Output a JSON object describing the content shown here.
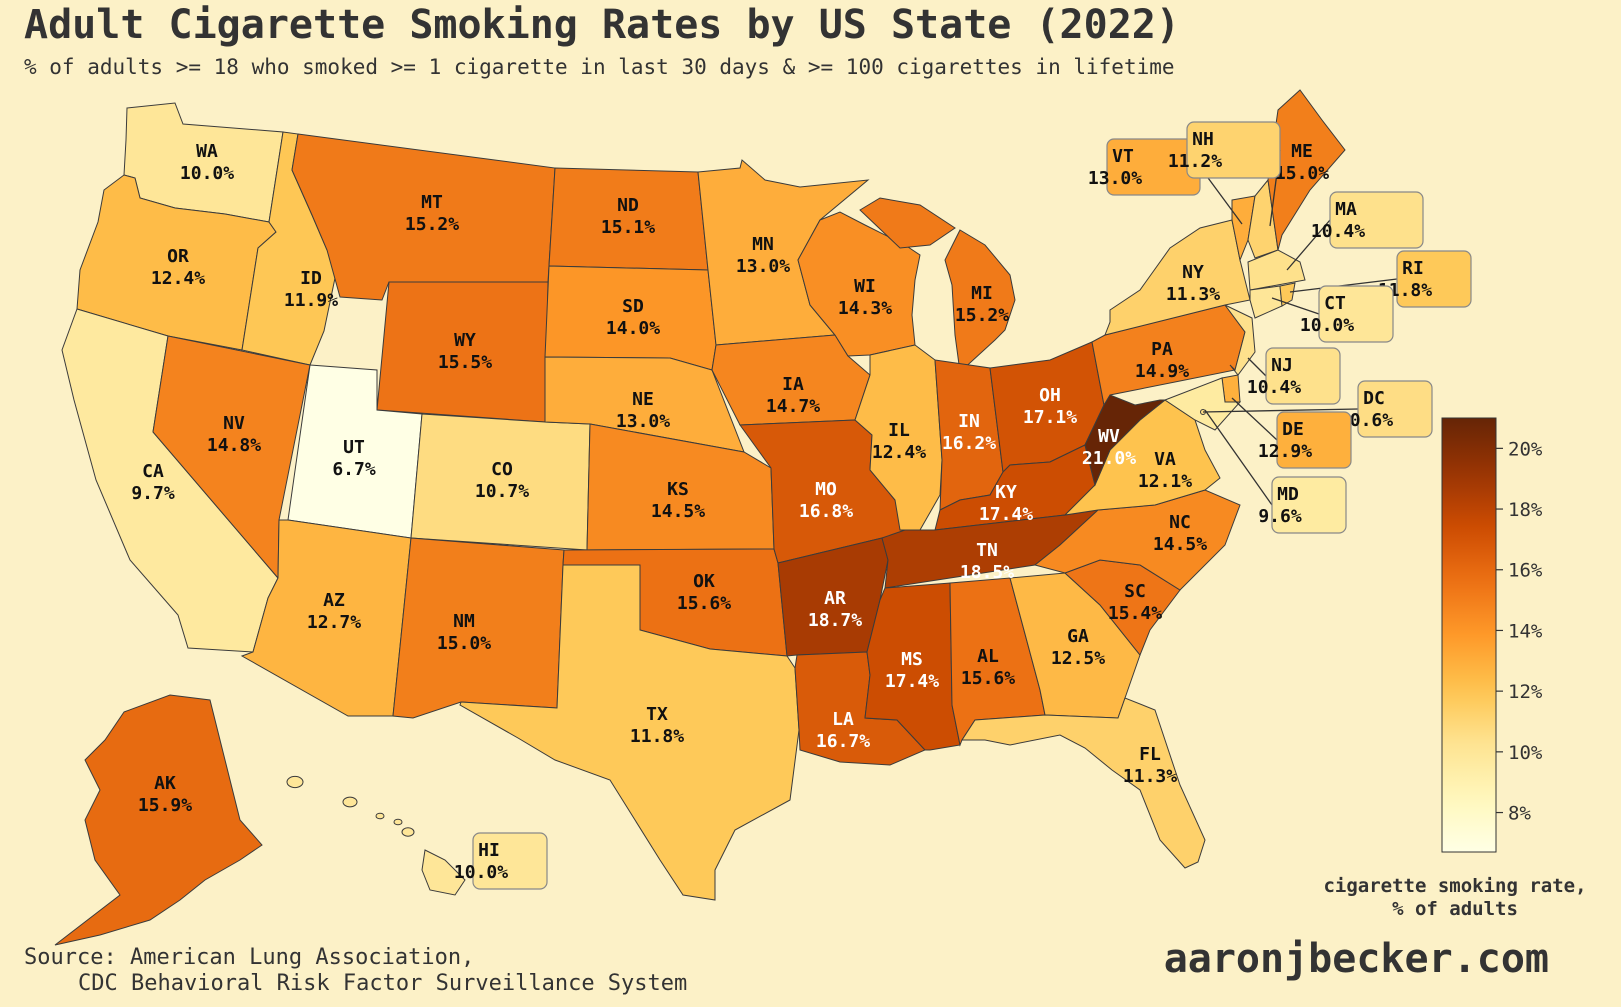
{
  "header": {
    "title": "Adult Cigarette Smoking Rates by US State (2022)",
    "subtitle": "% of adults >= 18 who smoked >= 1 cigarette in last 30 days & >= 100 cigarettes in lifetime"
  },
  "footer": {
    "source_line1": "Source: American Lung Association,",
    "source_line2": "CDC Behavioral Risk Factor Surveillance System",
    "brand": "aaronjbecker.com"
  },
  "legend": {
    "label_line1": "cigarette smoking rate,",
    "label_line2": "% of adults",
    "min": 6.7,
    "max": 21.0,
    "ticks": [
      8,
      10,
      12,
      14,
      16,
      18,
      20
    ],
    "tick_labels": [
      "8%",
      "10%",
      "12%",
      "14%",
      "16%",
      "18%",
      "20%"
    ]
  },
  "colors": {
    "background": "#fcf1c7",
    "scale": [
      "#ffffe5",
      "#fff7bc",
      "#fee391",
      "#fec44f",
      "#fe9929",
      "#ec7014",
      "#cc4c02",
      "#993404",
      "#662506"
    ]
  },
  "states": [
    {
      "abbr": "WA",
      "rate": 10.0,
      "label": "10.0%"
    },
    {
      "abbr": "OR",
      "rate": 12.4,
      "label": "12.4%"
    },
    {
      "abbr": "CA",
      "rate": 9.7,
      "label": "9.7%"
    },
    {
      "abbr": "ID",
      "rate": 11.9,
      "label": "11.9%"
    },
    {
      "abbr": "NV",
      "rate": 14.8,
      "label": "14.8%"
    },
    {
      "abbr": "MT",
      "rate": 15.2,
      "label": "15.2%"
    },
    {
      "abbr": "WY",
      "rate": 15.5,
      "label": "15.5%"
    },
    {
      "abbr": "UT",
      "rate": 6.7,
      "label": "6.7%"
    },
    {
      "abbr": "AZ",
      "rate": 12.7,
      "label": "12.7%"
    },
    {
      "abbr": "CO",
      "rate": 10.7,
      "label": "10.7%"
    },
    {
      "abbr": "NM",
      "rate": 15.0,
      "label": "15.0%"
    },
    {
      "abbr": "ND",
      "rate": 15.1,
      "label": "15.1%"
    },
    {
      "abbr": "SD",
      "rate": 14.0,
      "label": "14.0%"
    },
    {
      "abbr": "NE",
      "rate": 13.0,
      "label": "13.0%"
    },
    {
      "abbr": "KS",
      "rate": 14.5,
      "label": "14.5%"
    },
    {
      "abbr": "OK",
      "rate": 15.6,
      "label": "15.6%"
    },
    {
      "abbr": "TX",
      "rate": 11.8,
      "label": "11.8%"
    },
    {
      "abbr": "MN",
      "rate": 13.0,
      "label": "13.0%"
    },
    {
      "abbr": "IA",
      "rate": 14.7,
      "label": "14.7%"
    },
    {
      "abbr": "MO",
      "rate": 16.8,
      "label": "16.8%"
    },
    {
      "abbr": "AR",
      "rate": 18.7,
      "label": "18.7%"
    },
    {
      "abbr": "LA",
      "rate": 16.7,
      "label": "16.7%"
    },
    {
      "abbr": "WI",
      "rate": 14.3,
      "label": "14.3%"
    },
    {
      "abbr": "IL",
      "rate": 12.4,
      "label": "12.4%"
    },
    {
      "abbr": "MI",
      "rate": 15.2,
      "label": "15.2%"
    },
    {
      "abbr": "IN",
      "rate": 16.2,
      "label": "16.2%"
    },
    {
      "abbr": "OH",
      "rate": 17.1,
      "label": "17.1%"
    },
    {
      "abbr": "KY",
      "rate": 17.4,
      "label": "17.4%"
    },
    {
      "abbr": "TN",
      "rate": 18.5,
      "label": "18.5%"
    },
    {
      "abbr": "MS",
      "rate": 17.4,
      "label": "17.4%"
    },
    {
      "abbr": "AL",
      "rate": 15.6,
      "label": "15.6%"
    },
    {
      "abbr": "GA",
      "rate": 12.5,
      "label": "12.5%"
    },
    {
      "abbr": "FL",
      "rate": 11.3,
      "label": "11.3%"
    },
    {
      "abbr": "SC",
      "rate": 15.4,
      "label": "15.4%"
    },
    {
      "abbr": "NC",
      "rate": 14.5,
      "label": "14.5%"
    },
    {
      "abbr": "VA",
      "rate": 12.1,
      "label": "12.1%"
    },
    {
      "abbr": "WV",
      "rate": 21.0,
      "label": "21.0%"
    },
    {
      "abbr": "PA",
      "rate": 14.9,
      "label": "14.9%"
    },
    {
      "abbr": "NY",
      "rate": 11.3,
      "label": "11.3%"
    },
    {
      "abbr": "ME",
      "rate": 15.0,
      "label": "15.0%"
    },
    {
      "abbr": "AK",
      "rate": 15.9,
      "label": "15.9%"
    },
    {
      "abbr": "VT",
      "rate": 13.0,
      "label": "13.0%"
    },
    {
      "abbr": "NH",
      "rate": 11.2,
      "label": "11.2%"
    },
    {
      "abbr": "MA",
      "rate": 10.4,
      "label": "10.4%"
    },
    {
      "abbr": "RI",
      "rate": 11.8,
      "label": "11.8%"
    },
    {
      "abbr": "CT",
      "rate": 10.0,
      "label": "10.0%"
    },
    {
      "abbr": "NJ",
      "rate": 10.4,
      "label": "10.4%"
    },
    {
      "abbr": "DC",
      "rate": 10.6,
      "label": "10.6%"
    },
    {
      "abbr": "DE",
      "rate": 12.9,
      "label": "12.9%"
    },
    {
      "abbr": "MD",
      "rate": 9.6,
      "label": "9.6%"
    },
    {
      "abbr": "HI",
      "rate": 10.0,
      "label": "10.0%"
    }
  ]
}
